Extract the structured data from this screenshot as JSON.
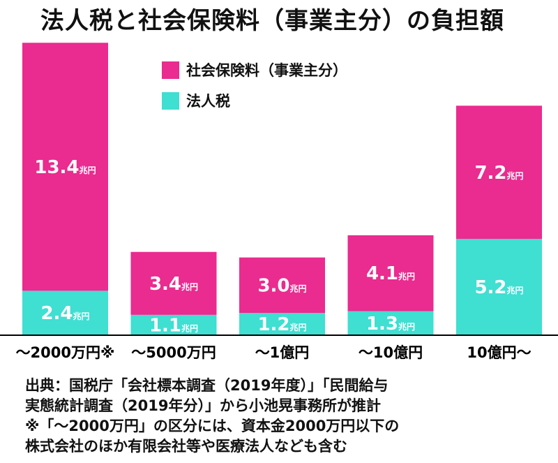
{
  "title": "法人税と社会保険料（事業主分）の負担額",
  "colors": {
    "social": "#ea2b8f",
    "corporate": "#3fdfd2",
    "text_on_bar": "#ffffff",
    "axis": "#000000"
  },
  "chart_data": {
    "type": "bar",
    "stacked": true,
    "unit": "兆円",
    "categories": [
      "～2000万円※",
      "～5000万円",
      "～1億円",
      "～10億円",
      "10億円～"
    ],
    "series": [
      {
        "name": "法人税",
        "values": [
          2.4,
          1.1,
          1.2,
          1.3,
          5.2
        ],
        "labels": [
          "2.4",
          "1.1",
          "1.2",
          "1.3",
          "5.2"
        ]
      },
      {
        "name": "社会保険料（事業主分）",
        "values": [
          13.4,
          3.4,
          3.0,
          4.1,
          7.2
        ],
        "labels": [
          "13.4",
          "3.4",
          "3.0",
          "4.1",
          "7.2"
        ]
      }
    ],
    "legend_position": "top-center",
    "grid": false,
    "ylim": [
      0,
      16.3
    ]
  },
  "source_note": [
    "出典：国税庁「会社標本調査（2019年度）」「民間給与",
    "実態統計調査（2019年分）」から小池晃事務所が推計",
    "※「～2000万円」の区分には、資本金2000万円以下の",
    "株式会社のほか有限会社等や医療法人なども含む"
  ]
}
